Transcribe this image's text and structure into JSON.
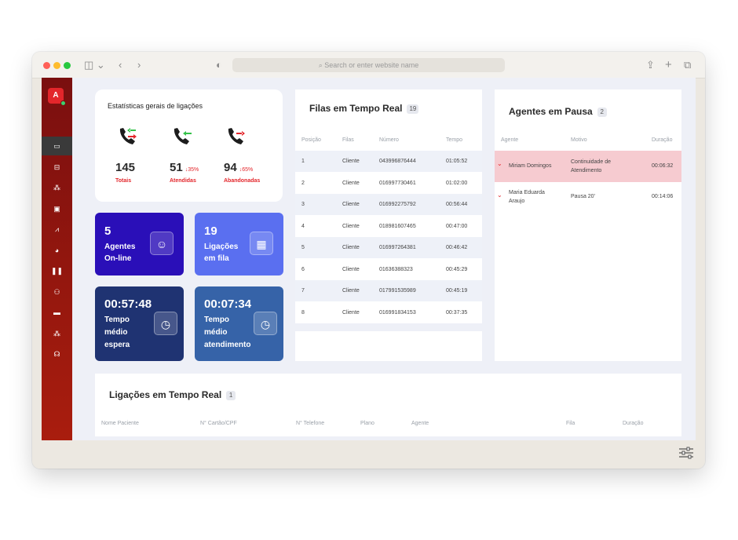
{
  "browser": {
    "address_placeholder": "Search or enter website name"
  },
  "sidebar": {
    "avatar_letter": "A",
    "items": [
      {
        "icon": "laptop-icon",
        "glyph": "▭",
        "active": true
      },
      {
        "icon": "inbox-icon",
        "glyph": "⊟",
        "active": false
      },
      {
        "icon": "users-icon",
        "glyph": "⁂",
        "active": false
      },
      {
        "icon": "id-card-icon",
        "glyph": "▣",
        "active": false
      },
      {
        "icon": "chart-icon",
        "glyph": "⩘",
        "active": false
      },
      {
        "icon": "pie-chart-icon",
        "glyph": "◕",
        "active": false
      },
      {
        "icon": "pause-icon",
        "glyph": "❚❚",
        "active": false
      },
      {
        "icon": "user-settings-icon",
        "glyph": "⚇",
        "active": false
      },
      {
        "icon": "monitor-icon",
        "glyph": "▬",
        "active": false
      },
      {
        "icon": "team-icon",
        "glyph": "⁂",
        "active": false
      },
      {
        "icon": "headset-icon",
        "glyph": "☊",
        "active": false
      }
    ]
  },
  "stats": {
    "title": "Estatísticas gerais de ligações",
    "totals": {
      "value": "145",
      "label": "Totais"
    },
    "answered": {
      "value": "51",
      "pct": "↓35%",
      "label": "Atendidas"
    },
    "abandoned": {
      "value": "94",
      "pct": "↓65%",
      "label": "Abandonadas"
    }
  },
  "tiles": {
    "agents": {
      "value": "5",
      "label_line1": "Agentes",
      "label_line2": "On-line"
    },
    "queue": {
      "value": "19",
      "label_line1": "Ligações",
      "label_line2": "em fila"
    },
    "wait": {
      "value": "00:57:48",
      "label_line1": "Tempo",
      "label_line2": "médio",
      "label_line3": "espera"
    },
    "service": {
      "value": "00:07:34",
      "label_line1": "Tempo",
      "label_line2": "médio",
      "label_line3": "atendimento"
    }
  },
  "queues": {
    "title": "Filas em Tempo Real",
    "count": "19",
    "headers": [
      "Posição",
      "Filas",
      "Número",
      "Tempo"
    ],
    "rows": [
      [
        "1",
        "Cliente",
        "043996876444",
        "01:05:52"
      ],
      [
        "2",
        "Cliente",
        "016997730461",
        "01:02:00"
      ],
      [
        "3",
        "Cliente",
        "016992275792",
        "00:56:44"
      ],
      [
        "4",
        "Cliente",
        "018981607465",
        "00:47:00"
      ],
      [
        "5",
        "Cliente",
        "016997264381",
        "00:46:42"
      ],
      [
        "6",
        "Cliente",
        "01636388323",
        "00:45:29"
      ],
      [
        "7",
        "Cliente",
        "017991535989",
        "00:45:19"
      ],
      [
        "8",
        "Cliente",
        "016991834153",
        "00:37:35"
      ]
    ]
  },
  "paused": {
    "title": "Agentes em Pausa",
    "count": "2",
    "headers": [
      "Agente",
      "Motivo",
      "Duração"
    ],
    "rows": [
      {
        "agent_l1": "Miriam Domingos",
        "agent_l2": "",
        "reason_l1": "Continuidade de",
        "reason_l2": "Atendimento",
        "duration": "00:06:32",
        "highlight": true
      },
      {
        "agent_l1": "Maria Eduarda",
        "agent_l2": "Araujo",
        "reason_l1": "Pausa 20'",
        "reason_l2": "",
        "duration": "00:14:06",
        "highlight": false
      }
    ]
  },
  "live_calls": {
    "title": "Ligações em Tempo Real",
    "count": "1",
    "headers": [
      "Nome Paciente",
      "N° Cartão/CPF",
      "N° Telefone",
      "Plano",
      "Agente",
      "Fila",
      "Duração"
    ]
  },
  "colors": {
    "sidebar": "#8f150f",
    "accent_red": "#e3262b",
    "tile_agents": "#2a0fb8",
    "tile_queue": "#5a6ff0",
    "tile_wait": "#1f3372",
    "tile_service": "#3663a8",
    "pause_highlight": "#f6cbd0"
  }
}
